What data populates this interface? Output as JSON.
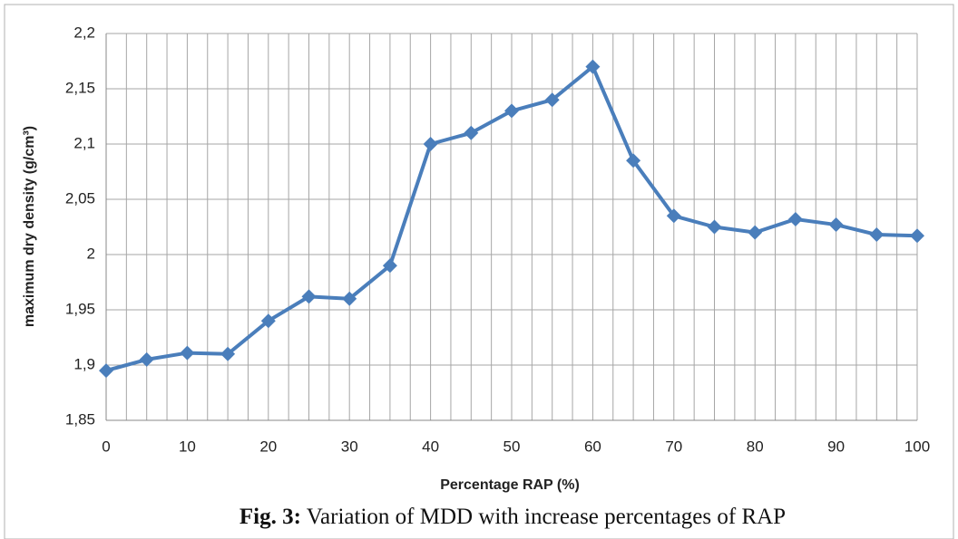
{
  "chart_data": {
    "type": "line",
    "y_label": "maximum dry density (g/cm³)",
    "x_label": "Percentage RAP (%)",
    "caption_label": "Fig. 3:",
    "caption_text": "Variation of MDD with increase percentages of RAP",
    "x": [
      0,
      5,
      10,
      15,
      20,
      25,
      30,
      35,
      40,
      45,
      50,
      55,
      60,
      65,
      70,
      75,
      80,
      85,
      90,
      95,
      100
    ],
    "series": [
      {
        "color": "#4a7ebb",
        "values": [
          1.895,
          1.905,
          1.911,
          1.91,
          1.94,
          1.962,
          1.96,
          1.99,
          2.1,
          2.11,
          2.13,
          2.14,
          2.17,
          2.085,
          2.035,
          2.025,
          2.02,
          2.032,
          2.027,
          2.018,
          2.017
        ]
      }
    ],
    "xlim": [
      0,
      100
    ],
    "xticks": [
      0,
      10,
      20,
      30,
      40,
      50,
      60,
      70,
      80,
      90,
      100
    ],
    "xgrid_ticks": [
      0,
      2.5,
      5,
      7.5,
      10,
      12.5,
      15,
      17.5,
      20,
      22.5,
      25,
      27.5,
      30,
      32.5,
      35,
      37.5,
      40,
      42.5,
      45,
      47.5,
      50,
      52.5,
      55,
      57.5,
      60,
      62.5,
      65,
      67.5,
      70,
      72.5,
      75,
      77.5,
      80,
      82.5,
      85,
      87.5,
      90,
      92.5,
      95,
      97.5,
      100
    ],
    "ylim": [
      1.85,
      2.2
    ],
    "yticks": [
      {
        "value": 1.85,
        "label": "1,85"
      },
      {
        "value": 1.9,
        "label": "1,9"
      },
      {
        "value": 1.95,
        "label": "1,95"
      },
      2,
      {
        "value": 2.05,
        "label": "2,05"
      },
      {
        "value": 2.1,
        "label": "2,1"
      },
      {
        "value": 2.15,
        "label": "2,15"
      },
      {
        "value": 2.2,
        "label": "2,2"
      }
    ],
    "grid": true
  }
}
